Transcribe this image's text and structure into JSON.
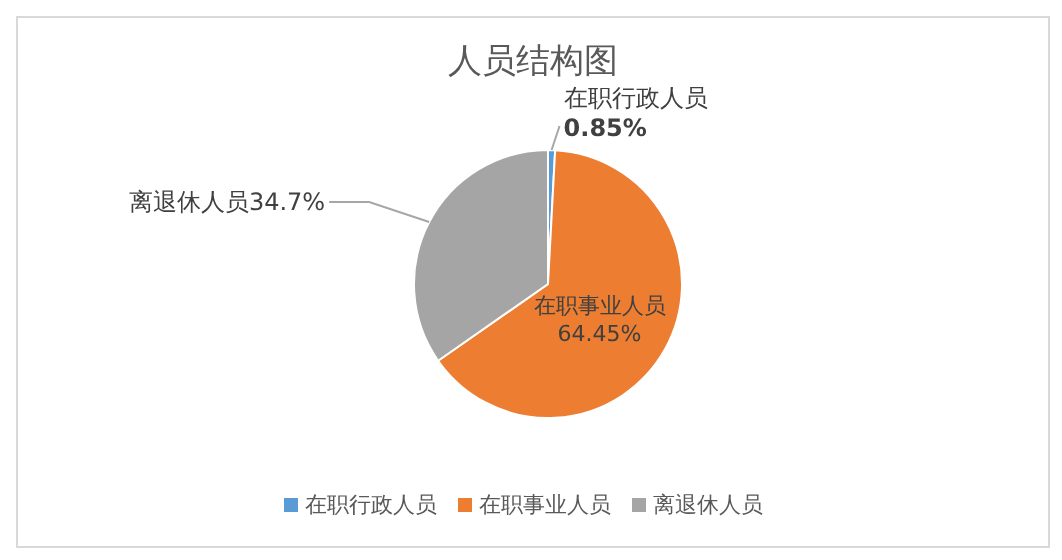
{
  "chart_data": {
    "type": "pie",
    "title": "人员结构图",
    "categories": [
      "在职行政人员",
      "在职事业人员",
      "离退休人员"
    ],
    "values": [
      0.85,
      64.45,
      34.7
    ],
    "colors": [
      "#5b9bd5",
      "#ed7d31",
      "#a5a5a5"
    ],
    "value_labels": [
      "0.85%",
      "64.45%",
      "34.7%"
    ],
    "legend": "bottom"
  }
}
